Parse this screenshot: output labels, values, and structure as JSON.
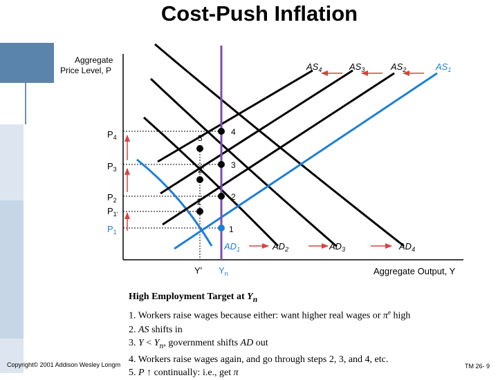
{
  "title": "Cost-Push Inflation",
  "colors": {
    "black": "#000000",
    "blue": "#1e7fd6",
    "purple": "#7b4fa8",
    "red_arrow": "#d7443f"
  },
  "diagram": {
    "y_axis_label_line1": "Aggregate",
    "y_axis_label_line2": "Price Level, P",
    "x_axis_label": "Aggregate Output, Y",
    "price_levels": [
      "P4",
      "P3",
      "P2",
      "P1'",
      "P1"
    ],
    "price_levels_display": [
      {
        "main": "P",
        "sub": "4"
      },
      {
        "main": "P",
        "sub": "3"
      },
      {
        "main": "P",
        "sub": "2"
      },
      {
        "main": "P",
        "sub": "1'"
      },
      {
        "main": "P",
        "sub": "1"
      }
    ],
    "output_levels": [
      "Y'",
      "Yn"
    ],
    "output_levels_display": [
      {
        "main": "Y'",
        "sub": ""
      },
      {
        "main": "Y",
        "sub": "n"
      }
    ],
    "as_curves": [
      {
        "main": "AS",
        "sub": "4"
      },
      {
        "main": "AS",
        "sub": "3"
      },
      {
        "main": "AS",
        "sub": "2"
      },
      {
        "main": "AS",
        "sub": "1"
      }
    ],
    "ad_curves": [
      {
        "main": "AD",
        "sub": "1"
      },
      {
        "main": "AD",
        "sub": "2"
      },
      {
        "main": "AD",
        "sub": "3"
      },
      {
        "main": "AD",
        "sub": "4"
      }
    ],
    "points": [
      "1",
      "1'",
      "2",
      "2'",
      "3",
      "3'",
      "4"
    ]
  },
  "notes": {
    "heading": "High Employment Target at Yn",
    "heading_main": "High Employment Target at ",
    "heading_sym": "Y",
    "heading_sub": "n",
    "line1": "1. Workers raise wages because either: want higher real wages or πe high",
    "line1_text": "1. Workers raise wages because either: want higher real wages or ",
    "line1_pi": "π",
    "line1_sup": "e",
    "line1_end": " high",
    "line2": "2. AS shifts in",
    "line2_pre": "2. ",
    "line2_sym": "AS",
    "line2_post": " shifts in",
    "line3": "3. Y < Yn, government shifts AD out",
    "line3_pre": "3. ",
    "line3_sym1": "Y",
    "line3_mid": " < ",
    "line3_sym2": "Y",
    "line3_sub": "n",
    "line3_mid2": ", government shifts ",
    "line3_sym3": "AD",
    "line3_post": " out",
    "line4": "4. Workers raise wages again, and go through steps 2, 3, and 4, etc.",
    "line5": "5. P ↑ continually: i.e., get π",
    "line5_pre": "5. ",
    "line5_sym": "P",
    "line5_arrow": "↑",
    "line5_post": " continually: i.e., get ",
    "line5_pi": "π"
  },
  "footer": {
    "copyright": "Copyright© 2001 Addison Wesley Longm",
    "page": "TM 26- 9"
  }
}
